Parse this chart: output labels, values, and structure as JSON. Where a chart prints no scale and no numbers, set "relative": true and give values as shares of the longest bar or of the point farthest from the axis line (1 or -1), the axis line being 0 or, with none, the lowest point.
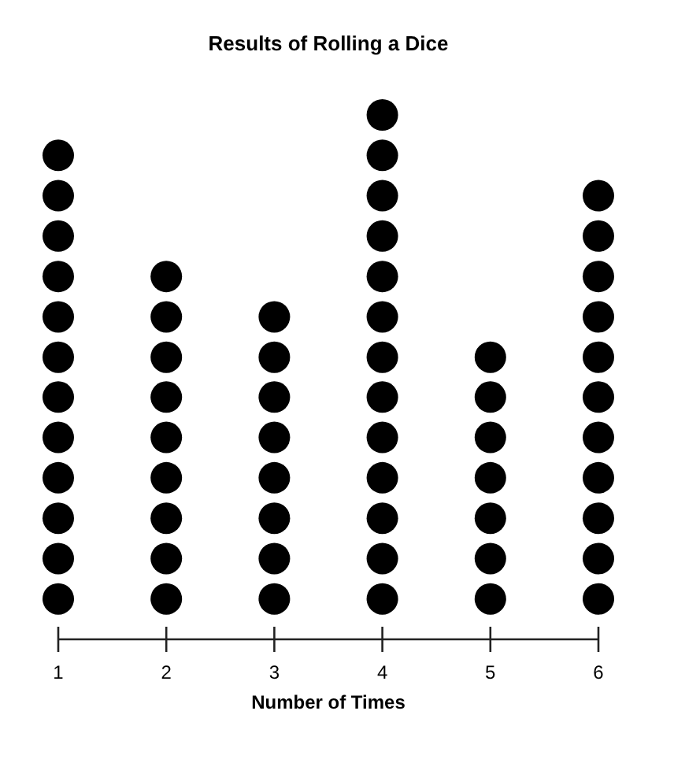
{
  "chart_data": {
    "type": "scatter",
    "title": "Results of Rolling a Dice",
    "xlabel": "Number of Times",
    "xlim": [
      1,
      6
    ],
    "xticks": [
      1,
      2,
      3,
      4,
      5,
      6
    ],
    "relative": true,
    "tick_labels": "x",
    "marker": "circle",
    "series": [
      {
        "color": "#000000",
        "x": [
          1,
          1,
          1,
          1,
          1,
          1,
          1,
          1,
          1,
          1,
          1,
          1,
          2,
          2,
          2,
          2,
          2,
          2,
          2,
          2,
          2,
          3,
          3,
          3,
          3,
          3,
          3,
          3,
          3,
          4,
          4,
          4,
          4,
          4,
          4,
          4,
          4,
          4,
          4,
          4,
          4,
          4,
          5,
          5,
          5,
          5,
          5,
          5,
          5,
          6,
          6,
          6,
          6,
          6,
          6,
          6,
          6,
          6,
          6,
          6
        ],
        "values": [
          0.077,
          0.154,
          0.231,
          0.308,
          0.385,
          0.462,
          0.538,
          0.615,
          0.692,
          0.769,
          0.846,
          0.923,
          0.077,
          0.154,
          0.231,
          0.308,
          0.385,
          0.462,
          0.538,
          0.615,
          0.692,
          0.077,
          0.154,
          0.231,
          0.308,
          0.385,
          0.462,
          0.538,
          0.615,
          0.077,
          0.154,
          0.231,
          0.308,
          0.385,
          0.462,
          0.538,
          0.615,
          0.692,
          0.769,
          0.846,
          0.923,
          1,
          0.077,
          0.154,
          0.231,
          0.308,
          0.385,
          0.462,
          0.538,
          0.077,
          0.154,
          0.231,
          0.308,
          0.385,
          0.462,
          0.538,
          0.615,
          0.692,
          0.769,
          0.846
        ]
      }
    ]
  }
}
